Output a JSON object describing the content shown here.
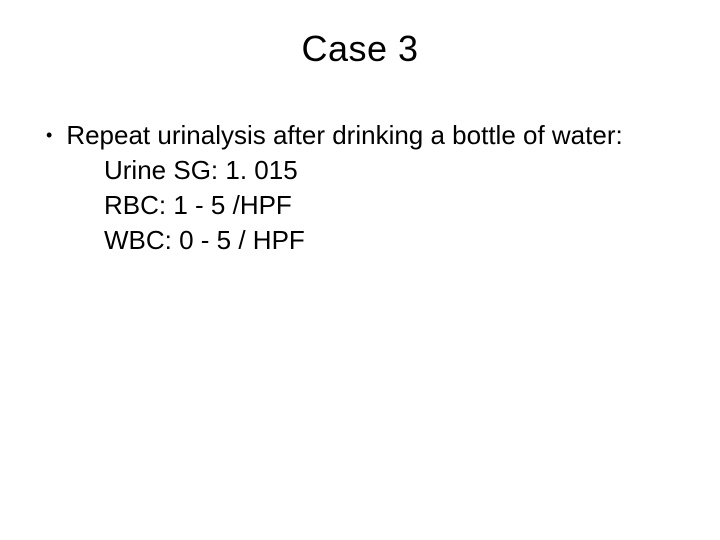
{
  "slide": {
    "title": "Case 3",
    "background_color": "#ffffff",
    "text_color": "#000000",
    "title_fontsize": 36,
    "body_fontsize": 26,
    "bullet": {
      "marker": "•",
      "intro": "Repeat urinalysis after drinking a bottle of water:",
      "lines": [
        "Urine SG: 1. 015",
        "RBC:   1 - 5 /HPF",
        "WBC:  0 - 5  / HPF"
      ]
    }
  }
}
